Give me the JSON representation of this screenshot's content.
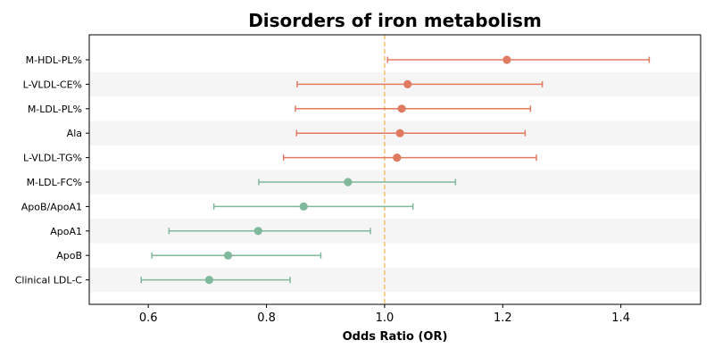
{
  "chart_data": {
    "type": "forest",
    "title": "Disorders of iron metabolism",
    "xlabel": "Odds Ratio (OR)",
    "ylabel": "",
    "xlim": [
      0.5,
      1.535
    ],
    "xticks": [
      0.6,
      0.8,
      1.0,
      1.2,
      1.4
    ],
    "xtick_labels": [
      "0.6",
      "0.8",
      "1.0",
      "1.2",
      "1.4"
    ],
    "reference_line": 1.0,
    "grid": false,
    "row_banding": true,
    "colors": {
      "increased_risk": "#e07b62",
      "decreased_risk": "#80b89c",
      "reference_line": "#f5c27a",
      "band": "#f5f5f5"
    },
    "rows": [
      {
        "label": "M-HDL-PL%",
        "or": 1.207,
        "lower": 1.005,
        "upper": 1.448
      },
      {
        "label": "L-VLDL-CE%",
        "or": 1.039,
        "lower": 0.852,
        "upper": 1.267
      },
      {
        "label": "M-LDL-PL%",
        "or": 1.029,
        "lower": 0.849,
        "upper": 1.247
      },
      {
        "label": "Ala",
        "or": 1.026,
        "lower": 0.851,
        "upper": 1.238
      },
      {
        "label": "L-VLDL-TG%",
        "or": 1.021,
        "lower": 0.829,
        "upper": 1.257
      },
      {
        "label": "M-LDL-FC%",
        "or": 0.938,
        "lower": 0.787,
        "upper": 1.12
      },
      {
        "label": "ApoB/ApoA1",
        "or": 0.863,
        "lower": 0.711,
        "upper": 1.048
      },
      {
        "label": "ApoA1",
        "or": 0.786,
        "lower": 0.635,
        "upper": 0.976
      },
      {
        "label": "ApoB",
        "or": 0.735,
        "lower": 0.606,
        "upper": 0.892
      },
      {
        "label": "Clinical LDL-C",
        "or": 0.703,
        "lower": 0.588,
        "upper": 0.84
      }
    ]
  }
}
